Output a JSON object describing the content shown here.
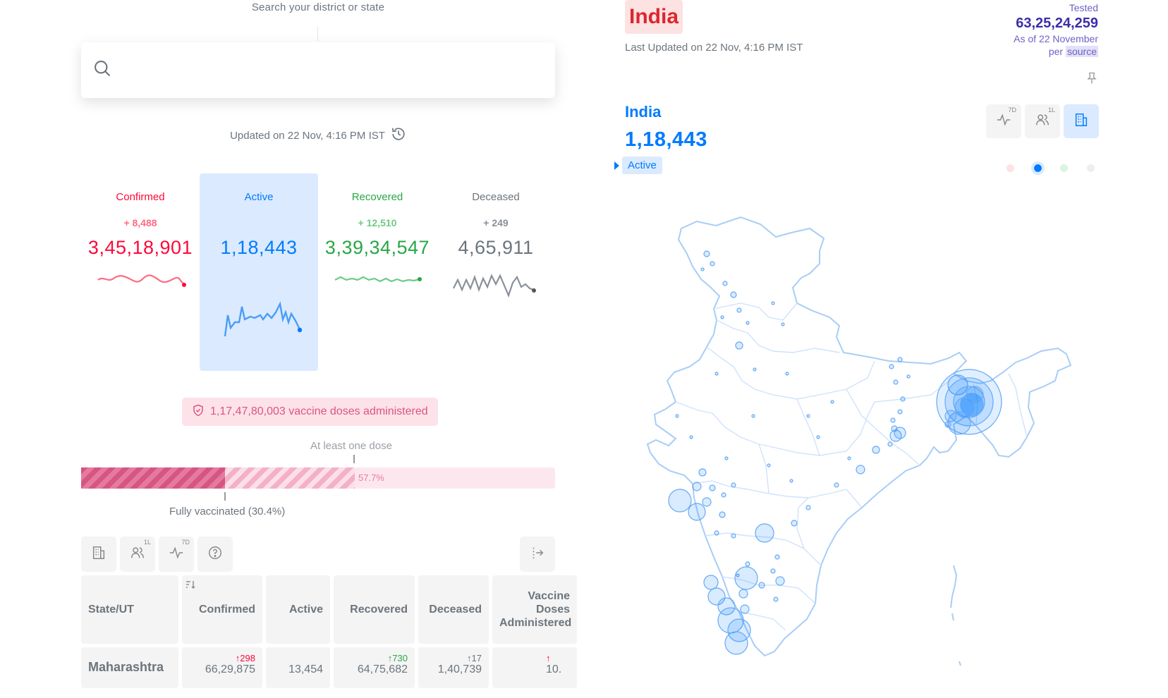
{
  "search": {
    "label": "Search your district or state",
    "placeholder": ""
  },
  "updated": "Updated on 22 Nov, 4:16 PM IST",
  "stats": {
    "confirmed": {
      "label": "Confirmed",
      "delta": "+ 8,488",
      "total": "3,45,18,901"
    },
    "active": {
      "label": "Active",
      "delta": "",
      "total": "1,18,443"
    },
    "recovered": {
      "label": "Recovered",
      "delta": "+ 12,510",
      "total": "3,39,34,547"
    },
    "deceased": {
      "label": "Deceased",
      "delta": "+ 249",
      "total": "4,65,911"
    }
  },
  "colors": {
    "confirmed": "#ff073a",
    "active": "#007bff",
    "recovered": "#28a745",
    "deceased": "#6c757d",
    "vaccine": "#db5581"
  },
  "vaccination": {
    "doses": "1,17,47,80,003 vaccine doses administered",
    "at_least_one_label": "At least one dose",
    "at_least_one_pct": 57.7,
    "at_least_one_text": "57.7%",
    "fully_label": "Fully vaccinated (30.4%)",
    "fully_pct": 30.4
  },
  "table_toolbar": {
    "buttons": [
      {
        "icon": "building-icon",
        "sup": ""
      },
      {
        "icon": "users-icon",
        "sup": "1L"
      },
      {
        "icon": "pulse-icon",
        "sup": "7D"
      },
      {
        "icon": "help-icon",
        "sup": ""
      }
    ],
    "expand_icon": "expand-columns-icon"
  },
  "table": {
    "headers": [
      "State/UT",
      "Confirmed",
      "Active",
      "Recovered",
      "Deceased",
      "Vaccine Doses Administered"
    ],
    "rows": [
      {
        "state": "Maharashtra",
        "confirmed": {
          "delta": "↑298",
          "total": "66,29,875"
        },
        "active": {
          "total": "13,454"
        },
        "recovered": {
          "delta": "↑730",
          "total": "64,75,682"
        },
        "deceased": {
          "delta": "↑17",
          "total": "1,40,739"
        },
        "vaccine": {
          "delta": "↑",
          "total": "10."
        }
      }
    ]
  },
  "right": {
    "region_tag": "India",
    "last_updated": "Last Updated on 22 Nov, 4:16 PM IST",
    "tested": {
      "label": "Tested",
      "value": "63,25,24,259",
      "as_of": "As of 22 November",
      "per": "per",
      "source": "source"
    },
    "map": {
      "region": "India",
      "total": "1,18,443",
      "statistic": "Active"
    },
    "map_buttons": [
      {
        "icon": "pulse-icon",
        "sup": "7D"
      },
      {
        "icon": "users-icon",
        "sup": "1L"
      },
      {
        "icon": "building-icon",
        "sup": ""
      }
    ]
  }
}
